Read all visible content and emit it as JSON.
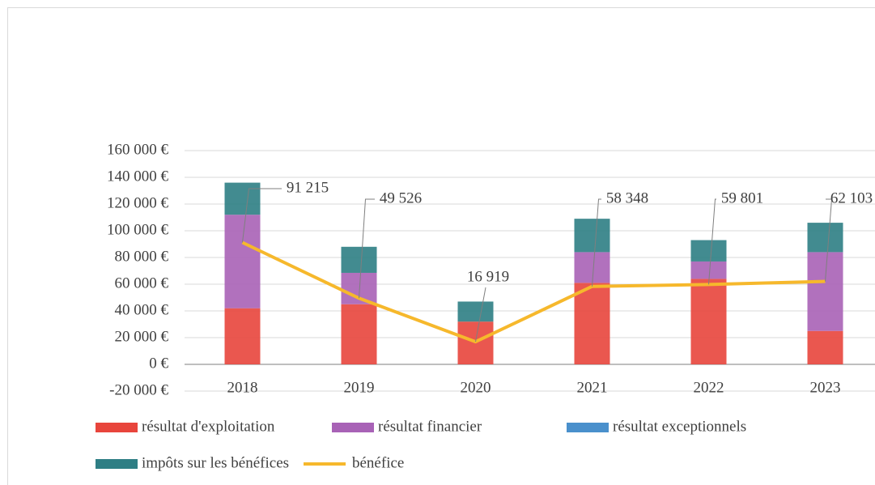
{
  "chart_data": {
    "type": "bar",
    "categories": [
      "2018",
      "2019",
      "2020",
      "2021",
      "2022",
      "2023"
    ],
    "series": [
      {
        "name": "résultat d'exploitation",
        "color": "#e8453c",
        "values": [
          42000,
          45000,
          32000,
          61000,
          64000,
          25000
        ]
      },
      {
        "name": "résultat financier",
        "color": "#a862b6",
        "values": [
          70000,
          23500,
          0,
          23000,
          13000,
          59000
        ]
      },
      {
        "name": "résultat exceptionnels",
        "color": "#4a90cc",
        "values": [
          0,
          0,
          0,
          0,
          0,
          0
        ]
      },
      {
        "name": "impôts sur les bénéfices",
        "color": "#2e7e84",
        "values": [
          24000,
          19500,
          15000,
          25000,
          16000,
          22000
        ]
      },
      {
        "name": "bénéfice",
        "color": "#f6b82c",
        "type": "line",
        "values": [
          91215,
          49526,
          16919,
          58348,
          59801,
          62103
        ],
        "value_labels": [
          "91 215",
          "49 526",
          "16 919",
          "58 348",
          "59 801",
          "62 103"
        ]
      }
    ],
    "ylim": [
      -20000,
      160000
    ],
    "yticks": [
      {
        "value": -20000,
        "label": "-20 000 €"
      },
      {
        "value": 0,
        "label": "0 €"
      },
      {
        "value": 20000,
        "label": "20 000 €"
      },
      {
        "value": 40000,
        "label": "40 000 €"
      },
      {
        "value": 60000,
        "label": "60 000 €"
      },
      {
        "value": 80000,
        "label": "80 000 €"
      },
      {
        "value": 100000,
        "label": "100 000 €"
      },
      {
        "value": 120000,
        "label": "120 000 €"
      },
      {
        "value": 140000,
        "label": "140 000 €"
      },
      {
        "value": 160000,
        "label": "160 000 €"
      }
    ],
    "grid": true
  }
}
